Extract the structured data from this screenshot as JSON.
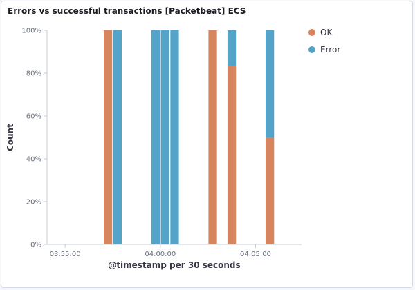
{
  "panel": {
    "title": "Errors vs successful transactions [Packetbeat] ECS"
  },
  "chart_data": {
    "type": "bar",
    "stacked": true,
    "normalized_percent": true,
    "title": "Errors vs successful transactions [Packetbeat] ECS",
    "xlabel": "@timestamp per 30 seconds",
    "ylabel": "Count",
    "x_domain": [
      "03:54:03",
      "04:07:25"
    ],
    "interval_seconds": 30,
    "x_ticks": [
      "03:55:00",
      "04:00:00",
      "04:05:00"
    ],
    "y_ticks": [
      "0%",
      "20%",
      "40%",
      "60%",
      "80%",
      "100%"
    ],
    "ylim": [
      0,
      100
    ],
    "grid": false,
    "legend": "top-right",
    "series": [
      {
        "name": "OK",
        "color": "#d6855f"
      },
      {
        "name": "Error",
        "color": "#54a4c9"
      }
    ],
    "buckets": [
      {
        "start": "03:57:00",
        "OK": 100,
        "Error": 0
      },
      {
        "start": "03:57:30",
        "OK": 0,
        "Error": 100
      },
      {
        "start": "03:59:30",
        "OK": 0,
        "Error": 100
      },
      {
        "start": "04:00:00",
        "OK": 0,
        "Error": 100
      },
      {
        "start": "04:00:30",
        "OK": 0,
        "Error": 100
      },
      {
        "start": "04:02:30",
        "OK": 100,
        "Error": 0
      },
      {
        "start": "04:03:30",
        "OK": 83.3,
        "Error": 16.7
      },
      {
        "start": "04:05:30",
        "OK": 50,
        "Error": 50
      }
    ]
  }
}
